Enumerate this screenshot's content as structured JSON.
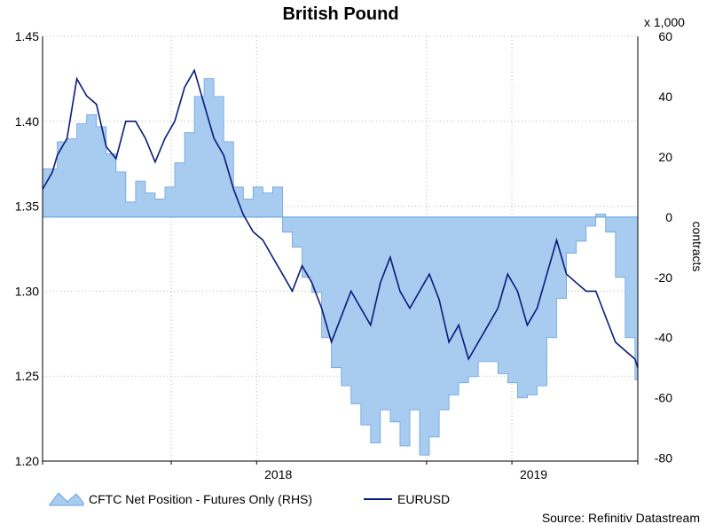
{
  "chart_data": {
    "type": "area",
    "title": "British Pound",
    "source": "Source: Refinitiv Datastream",
    "x_ticks": [
      "2018",
      "2019"
    ],
    "left_axis": {
      "ticks": [
        "1.45",
        "1.40",
        "1.35",
        "1.30",
        "1.25",
        "1.20"
      ],
      "ylim": [
        1.2,
        1.45
      ]
    },
    "right_axis": {
      "ticks": [
        "60",
        "40",
        "20",
        "0",
        "-20",
        "-40",
        "-60",
        "-80"
      ],
      "ylim": [
        -81,
        60
      ],
      "unit": "x 1,000",
      "label": "contracts"
    },
    "grid": true,
    "legend_position": "bottom-left",
    "colors": {
      "area": "#a8cbf0",
      "area_edge": "#6aa3e0",
      "line": "#0a1a7a",
      "grid": "#b5b5b5"
    },
    "x_range": [
      "2017-03-01",
      "2019-06-30"
    ],
    "series": [
      {
        "name": "CFTC Net Position - Futures Only (RHS)",
        "axis": "right",
        "kind": "area",
        "points": [
          [
            "2017-03-01",
            16
          ],
          [
            "2017-03-15",
            16
          ],
          [
            "2017-03-22",
            25
          ],
          [
            "2017-04-05",
            26
          ],
          [
            "2017-04-19",
            31
          ],
          [
            "2017-05-03",
            34
          ],
          [
            "2017-05-17",
            30
          ],
          [
            "2017-05-31",
            21
          ],
          [
            "2017-06-14",
            15
          ],
          [
            "2017-06-28",
            5
          ],
          [
            "2017-07-12",
            12
          ],
          [
            "2017-07-26",
            8
          ],
          [
            "2017-08-09",
            6
          ],
          [
            "2017-08-23",
            10
          ],
          [
            "2017-09-06",
            18
          ],
          [
            "2017-09-20",
            28
          ],
          [
            "2017-10-04",
            40
          ],
          [
            "2017-10-18",
            46
          ],
          [
            "2017-11-01",
            40
          ],
          [
            "2017-11-15",
            25
          ],
          [
            "2017-11-29",
            10
          ],
          [
            "2017-12-13",
            6
          ],
          [
            "2017-12-27",
            10
          ],
          [
            "2018-01-10",
            8
          ],
          [
            "2018-01-24",
            10
          ],
          [
            "2018-02-07",
            -5
          ],
          [
            "2018-02-21",
            -10
          ],
          [
            "2018-03-07",
            -20
          ],
          [
            "2018-03-21",
            -25
          ],
          [
            "2018-04-04",
            -40
          ],
          [
            "2018-04-18",
            -50
          ],
          [
            "2018-05-02",
            -56
          ],
          [
            "2018-05-16",
            -62
          ],
          [
            "2018-05-30",
            -69
          ],
          [
            "2018-06-13",
            -75
          ],
          [
            "2018-06-27",
            -64
          ],
          [
            "2018-07-11",
            -68
          ],
          [
            "2018-07-25",
            -76
          ],
          [
            "2018-08-08",
            -64
          ],
          [
            "2018-08-22",
            -79
          ],
          [
            "2018-09-05",
            -73
          ],
          [
            "2018-09-19",
            -64
          ],
          [
            "2018-10-03",
            -59
          ],
          [
            "2018-10-17",
            -55
          ],
          [
            "2018-10-31",
            -53
          ],
          [
            "2018-11-14",
            -48
          ],
          [
            "2018-11-28",
            -48
          ],
          [
            "2018-12-12",
            -52
          ],
          [
            "2018-12-26",
            -55
          ],
          [
            "2019-01-09",
            -60
          ],
          [
            "2019-01-23",
            -59
          ],
          [
            "2019-02-06",
            -56
          ],
          [
            "2019-02-20",
            -40
          ],
          [
            "2019-03-06",
            -27
          ],
          [
            "2019-03-20",
            -12
          ],
          [
            "2019-04-03",
            -8
          ],
          [
            "2019-04-17",
            -3
          ],
          [
            "2019-05-01",
            1
          ],
          [
            "2019-05-15",
            -5
          ],
          [
            "2019-05-29",
            -20
          ],
          [
            "2019-06-12",
            -40
          ],
          [
            "2019-06-26",
            -54
          ],
          [
            "2019-06-30",
            -70
          ]
        ]
      },
      {
        "name": "EURUSD",
        "axis": "left",
        "kind": "line",
        "points": [
          [
            "2017-03-01",
            1.36
          ],
          [
            "2017-03-15",
            1.37
          ],
          [
            "2017-03-22",
            1.38
          ],
          [
            "2017-04-05",
            1.39
          ],
          [
            "2017-04-19",
            1.425
          ],
          [
            "2017-05-03",
            1.415
          ],
          [
            "2017-05-17",
            1.41
          ],
          [
            "2017-05-31",
            1.385
          ],
          [
            "2017-06-14",
            1.378
          ],
          [
            "2017-06-28",
            1.4
          ],
          [
            "2017-07-12",
            1.4
          ],
          [
            "2017-07-26",
            1.39
          ],
          [
            "2017-08-09",
            1.376
          ],
          [
            "2017-08-23",
            1.39
          ],
          [
            "2017-09-06",
            1.4
          ],
          [
            "2017-09-20",
            1.42
          ],
          [
            "2017-10-04",
            1.43
          ],
          [
            "2017-10-18",
            1.41
          ],
          [
            "2017-11-01",
            1.39
          ],
          [
            "2017-11-15",
            1.38
          ],
          [
            "2017-11-29",
            1.36
          ],
          [
            "2017-12-13",
            1.345
          ],
          [
            "2017-12-27",
            1.335
          ],
          [
            "2018-01-10",
            1.33
          ],
          [
            "2018-01-24",
            1.32
          ],
          [
            "2018-02-07",
            1.31
          ],
          [
            "2018-02-21",
            1.3
          ],
          [
            "2018-03-07",
            1.315
          ],
          [
            "2018-03-21",
            1.305
          ],
          [
            "2018-04-04",
            1.29
          ],
          [
            "2018-04-18",
            1.27
          ],
          [
            "2018-05-02",
            1.285
          ],
          [
            "2018-05-16",
            1.3
          ],
          [
            "2018-05-30",
            1.29
          ],
          [
            "2018-06-13",
            1.28
          ],
          [
            "2018-06-27",
            1.305
          ],
          [
            "2018-07-11",
            1.32
          ],
          [
            "2018-07-25",
            1.3
          ],
          [
            "2018-08-08",
            1.29
          ],
          [
            "2018-08-22",
            1.3
          ],
          [
            "2018-09-05",
            1.31
          ],
          [
            "2018-09-19",
            1.295
          ],
          [
            "2018-10-03",
            1.27
          ],
          [
            "2018-10-17",
            1.28
          ],
          [
            "2018-10-31",
            1.26
          ],
          [
            "2018-11-14",
            1.27
          ],
          [
            "2018-11-28",
            1.28
          ],
          [
            "2018-12-12",
            1.29
          ],
          [
            "2018-12-26",
            1.31
          ],
          [
            "2019-01-09",
            1.3
          ],
          [
            "2019-01-23",
            1.28
          ],
          [
            "2019-02-06",
            1.29
          ],
          [
            "2019-02-20",
            1.31
          ],
          [
            "2019-03-06",
            1.33
          ],
          [
            "2019-03-20",
            1.31
          ],
          [
            "2019-04-03",
            1.305
          ],
          [
            "2019-04-17",
            1.3
          ],
          [
            "2019-05-01",
            1.3
          ],
          [
            "2019-05-15",
            1.285
          ],
          [
            "2019-05-29",
            1.27
          ],
          [
            "2019-06-12",
            1.265
          ],
          [
            "2019-06-26",
            1.26
          ],
          [
            "2019-06-30",
            1.255
          ]
        ]
      }
    ]
  }
}
